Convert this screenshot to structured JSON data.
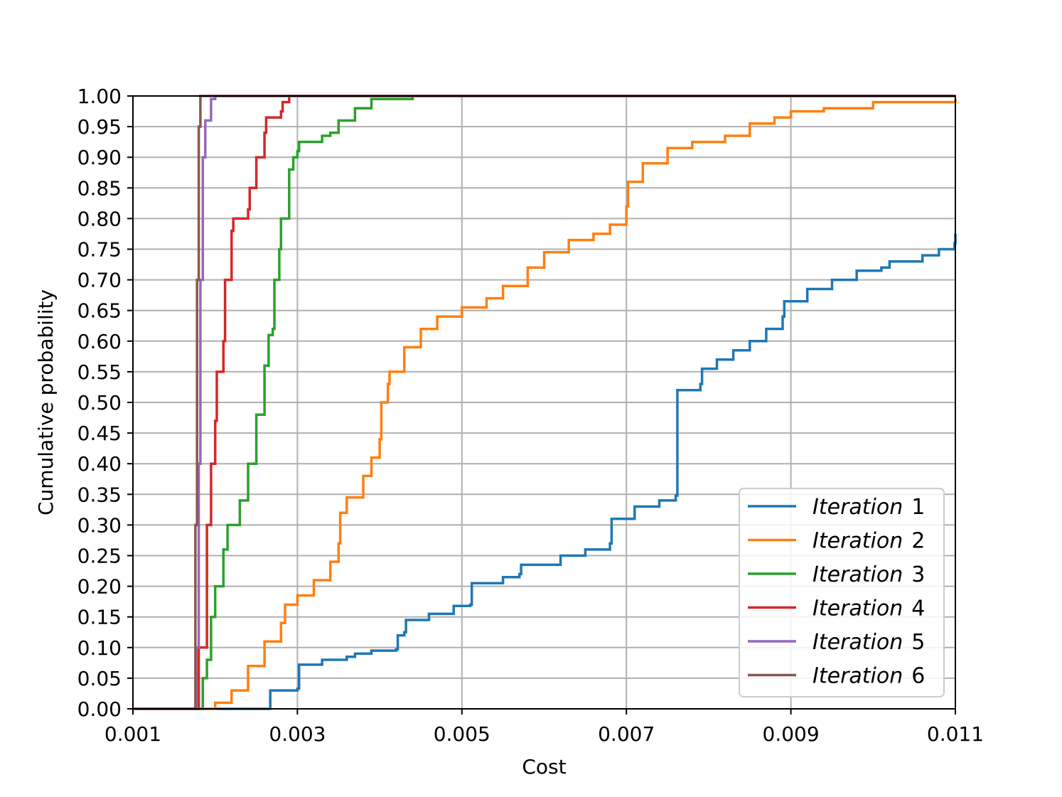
{
  "chart_data": {
    "type": "line",
    "title": "",
    "xlabel": "Cost",
    "ylabel": "Cumulative probability",
    "xlim": [
      0.001,
      0.011
    ],
    "ylim": [
      0.0,
      1.0
    ],
    "xticks": [
      "0.001",
      "0.003",
      "0.005",
      "0.007",
      "0.009",
      "0.011"
    ],
    "yticks": [
      "0.00",
      "0.05",
      "0.10",
      "0.15",
      "0.20",
      "0.25",
      "0.30",
      "0.35",
      "0.40",
      "0.45",
      "0.50",
      "0.55",
      "0.60",
      "0.65",
      "0.70",
      "0.75",
      "0.80",
      "0.85",
      "0.90",
      "0.95",
      "1.00"
    ],
    "grid": true,
    "legend_position": "lower-right",
    "series": [
      {
        "name_prefix": "Iteration",
        "name_number": "1",
        "color": "#1f77b4",
        "points": [
          [
            0.001,
            0.0
          ],
          [
            0.00265,
            0.0
          ],
          [
            0.00267,
            0.03
          ],
          [
            0.003,
            0.033
          ],
          [
            0.00302,
            0.072
          ],
          [
            0.0033,
            0.08
          ],
          [
            0.0036,
            0.085
          ],
          [
            0.0037,
            0.09
          ],
          [
            0.0039,
            0.095
          ],
          [
            0.0042,
            0.097
          ],
          [
            0.00422,
            0.12
          ],
          [
            0.0043,
            0.125
          ],
          [
            0.00432,
            0.145
          ],
          [
            0.0046,
            0.155
          ],
          [
            0.0049,
            0.168
          ],
          [
            0.0051,
            0.17
          ],
          [
            0.00512,
            0.205
          ],
          [
            0.0055,
            0.215
          ],
          [
            0.0057,
            0.22
          ],
          [
            0.00572,
            0.235
          ],
          [
            0.0062,
            0.25
          ],
          [
            0.0065,
            0.26
          ],
          [
            0.0068,
            0.27
          ],
          [
            0.00682,
            0.31
          ],
          [
            0.0071,
            0.33
          ],
          [
            0.0074,
            0.34
          ],
          [
            0.0076,
            0.348
          ],
          [
            0.00762,
            0.52
          ],
          [
            0.0079,
            0.53
          ],
          [
            0.00792,
            0.555
          ],
          [
            0.0081,
            0.57
          ],
          [
            0.0083,
            0.585
          ],
          [
            0.0085,
            0.6
          ],
          [
            0.0087,
            0.62
          ],
          [
            0.0089,
            0.64
          ],
          [
            0.00892,
            0.665
          ],
          [
            0.0092,
            0.685
          ],
          [
            0.0095,
            0.7
          ],
          [
            0.0098,
            0.715
          ],
          [
            0.0101,
            0.72
          ],
          [
            0.0102,
            0.73
          ],
          [
            0.0106,
            0.74
          ],
          [
            0.0108,
            0.75
          ],
          [
            0.01099,
            0.76
          ],
          [
            0.011,
            0.775
          ]
        ]
      },
      {
        "name_prefix": "Iteration",
        "name_number": "2",
        "color": "#ff7f0e",
        "points": [
          [
            0.001,
            0.0
          ],
          [
            0.00195,
            0.0
          ],
          [
            0.002,
            0.01
          ],
          [
            0.0022,
            0.03
          ],
          [
            0.0024,
            0.07
          ],
          [
            0.0026,
            0.11
          ],
          [
            0.0028,
            0.14
          ],
          [
            0.00285,
            0.17
          ],
          [
            0.003,
            0.185
          ],
          [
            0.0032,
            0.21
          ],
          [
            0.0034,
            0.24
          ],
          [
            0.0035,
            0.27
          ],
          [
            0.00352,
            0.32
          ],
          [
            0.0036,
            0.345
          ],
          [
            0.0038,
            0.38
          ],
          [
            0.0039,
            0.41
          ],
          [
            0.004,
            0.44
          ],
          [
            0.00402,
            0.5
          ],
          [
            0.0041,
            0.53
          ],
          [
            0.00412,
            0.55
          ],
          [
            0.0043,
            0.59
          ],
          [
            0.0045,
            0.62
          ],
          [
            0.0047,
            0.64
          ],
          [
            0.005,
            0.655
          ],
          [
            0.0053,
            0.67
          ],
          [
            0.0055,
            0.69
          ],
          [
            0.0058,
            0.72
          ],
          [
            0.006,
            0.745
          ],
          [
            0.0063,
            0.765
          ],
          [
            0.0066,
            0.775
          ],
          [
            0.0068,
            0.79
          ],
          [
            0.007,
            0.82
          ],
          [
            0.00702,
            0.86
          ],
          [
            0.0072,
            0.89
          ],
          [
            0.0075,
            0.915
          ],
          [
            0.0078,
            0.925
          ],
          [
            0.0082,
            0.935
          ],
          [
            0.0085,
            0.955
          ],
          [
            0.0088,
            0.965
          ],
          [
            0.009,
            0.975
          ],
          [
            0.0094,
            0.98
          ],
          [
            0.01,
            0.99
          ],
          [
            0.011,
            0.995
          ]
        ]
      },
      {
        "name_prefix": "Iteration",
        "name_number": "3",
        "color": "#2ca02c",
        "points": [
          [
            0.001,
            0.0
          ],
          [
            0.00183,
            0.0
          ],
          [
            0.00185,
            0.05
          ],
          [
            0.0019,
            0.08
          ],
          [
            0.00195,
            0.15
          ],
          [
            0.002,
            0.2
          ],
          [
            0.0021,
            0.26
          ],
          [
            0.00215,
            0.3
          ],
          [
            0.0023,
            0.34
          ],
          [
            0.0024,
            0.4
          ],
          [
            0.0025,
            0.48
          ],
          [
            0.0026,
            0.56
          ],
          [
            0.00265,
            0.61
          ],
          [
            0.0027,
            0.62
          ],
          [
            0.00272,
            0.7
          ],
          [
            0.00278,
            0.75
          ],
          [
            0.0028,
            0.8
          ],
          [
            0.0029,
            0.88
          ],
          [
            0.00295,
            0.9
          ],
          [
            0.003,
            0.91
          ],
          [
            0.00302,
            0.925
          ],
          [
            0.0033,
            0.935
          ],
          [
            0.0034,
            0.94
          ],
          [
            0.0035,
            0.96
          ],
          [
            0.0037,
            0.98
          ],
          [
            0.0039,
            0.995
          ],
          [
            0.0044,
            1.0
          ],
          [
            0.011,
            1.0
          ]
        ]
      },
      {
        "name_prefix": "Iteration",
        "name_number": "4",
        "color": "#d62728",
        "points": [
          [
            0.001,
            0.0
          ],
          [
            0.00178,
            0.0
          ],
          [
            0.0018,
            0.05
          ],
          [
            0.0018,
            0.1
          ],
          [
            0.0019,
            0.2
          ],
          [
            0.0019,
            0.3
          ],
          [
            0.00195,
            0.4
          ],
          [
            0.002,
            0.47
          ],
          [
            0.00202,
            0.55
          ],
          [
            0.0021,
            0.6
          ],
          [
            0.00212,
            0.7
          ],
          [
            0.0022,
            0.78
          ],
          [
            0.00222,
            0.8
          ],
          [
            0.0024,
            0.815
          ],
          [
            0.00242,
            0.85
          ],
          [
            0.0025,
            0.9
          ],
          [
            0.0026,
            0.94
          ],
          [
            0.00262,
            0.965
          ],
          [
            0.0028,
            0.975
          ],
          [
            0.00282,
            0.99
          ],
          [
            0.0029,
            1.0
          ],
          [
            0.011,
            1.0
          ]
        ]
      },
      {
        "name_prefix": "Iteration",
        "name_number": "5",
        "color": "#9467bd",
        "points": [
          [
            0.001,
            0.0
          ],
          [
            0.00175,
            0.0
          ],
          [
            0.00177,
            0.1
          ],
          [
            0.0018,
            0.4
          ],
          [
            0.00182,
            0.7
          ],
          [
            0.00185,
            0.9
          ],
          [
            0.00188,
            0.96
          ],
          [
            0.00195,
            0.995
          ],
          [
            0.002,
            1.0
          ],
          [
            0.011,
            1.0
          ]
        ]
      },
      {
        "name_prefix": "Iteration",
        "name_number": "6",
        "color": "#8c564b",
        "points": [
          [
            0.001,
            0.0
          ],
          [
            0.00175,
            0.0
          ],
          [
            0.00176,
            0.3
          ],
          [
            0.00178,
            0.7
          ],
          [
            0.0018,
            0.95
          ],
          [
            0.00182,
            1.0
          ],
          [
            0.011,
            1.0
          ]
        ]
      }
    ]
  }
}
